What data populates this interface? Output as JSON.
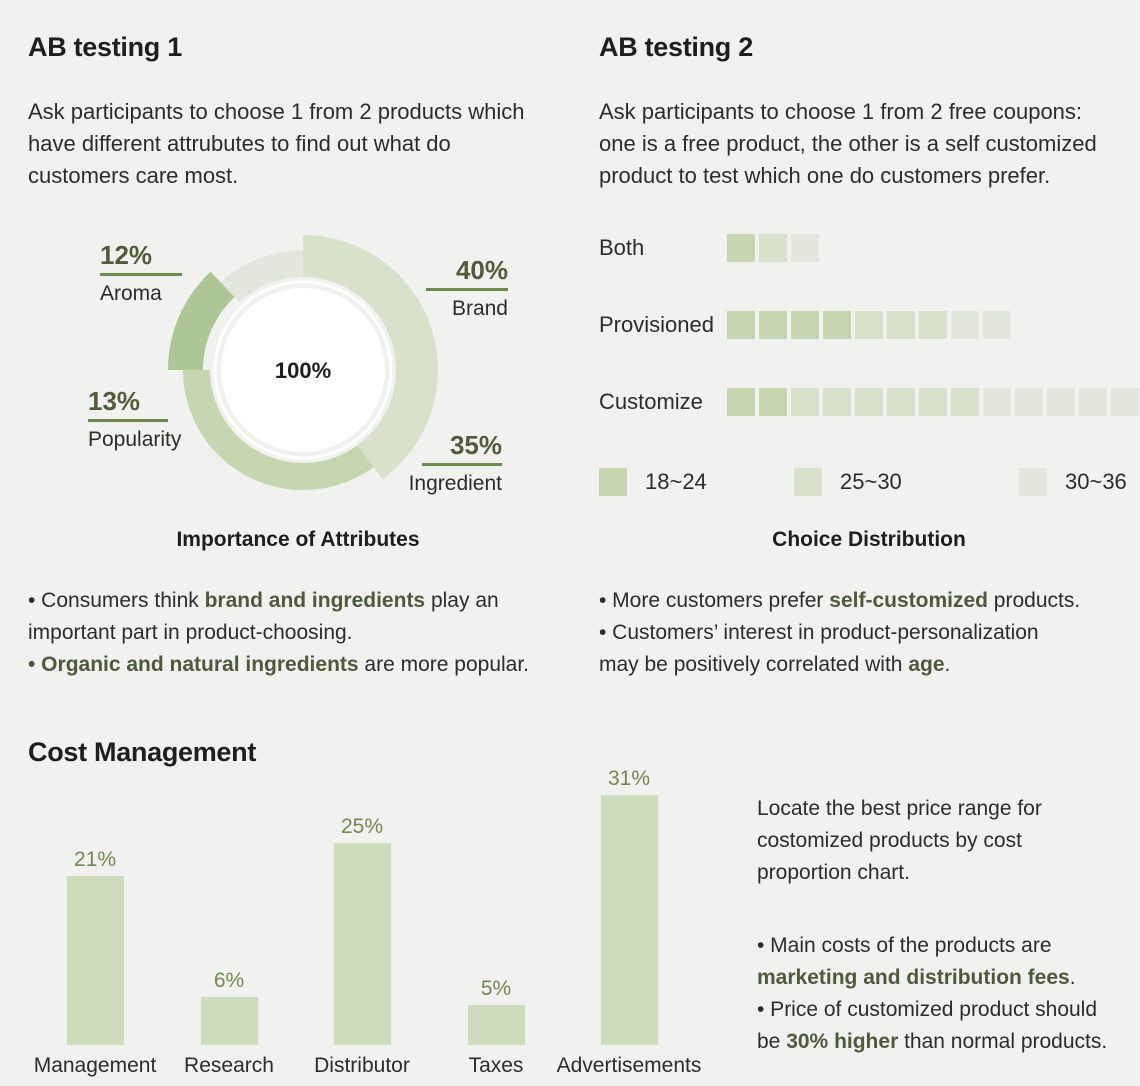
{
  "ab1": {
    "title": "AB testing 1",
    "desc_lines": [
      "Ask participants to choose 1 from 2 products which",
      "have different attrubutes to find out what do",
      "customers care most."
    ],
    "center_label": "100%",
    "caption": "Importance of Attributes",
    "bullet1_pre": "• Consumers think ",
    "bullet1_bold": "brand and ingredients",
    "bullet1_post": " play an",
    "bullet1_line2": "important part in product-choosing.",
    "bullet2_bold": "• Organic and natural ingredients",
    "bullet2_post": " are more popular."
  },
  "ab2": {
    "title": "AB testing 2",
    "desc_lines": [
      "Ask participants to choose 1 from 2 free coupons:",
      "one is a free product, the other is a self customized",
      "product to test which one do customers prefer."
    ],
    "caption": "Choice Distribution",
    "bullet1_pre": "• More customers prefer ",
    "bullet1_bold": "self-customized",
    "bullet1_post": " products.",
    "bullet2_line1": "• Customers’  interest in product-personalization",
    "bullet2_pre": "may be positively correlated with ",
    "bullet2_bold": "age",
    "bullet2_post": "."
  },
  "cost": {
    "title": "Cost Management",
    "desc_lines": [
      "Locate the best price range for",
      "costomized products by cost",
      "proportion chart."
    ],
    "bullet1_line1": "• Main costs of the products are",
    "bullet1_bold": "marketing and distribution fees",
    "bullet1_post": ".",
    "bullet2_line1": "• Price of customized product should",
    "bullet2_pre": "be ",
    "bullet2_bold": "30% higher",
    "bullet2_post": " than normal products."
  },
  "colors": {
    "dark_green": "#aec595",
    "mid_green": "#c6d6b1",
    "light_green": "#d8e2cb",
    "lightest": "#e2e6dc",
    "label_green": "#4f5d3a"
  },
  "chart_data": [
    {
      "type": "pie",
      "title": "Importance of Attributes",
      "categories": [
        "Brand",
        "Ingredient",
        "Popularity",
        "Aroma"
      ],
      "values": [
        40,
        35,
        13,
        12
      ],
      "labels": [
        "40%",
        "35%",
        "13%",
        "12%"
      ]
    },
    {
      "type": "bar",
      "title": "Choice Distribution",
      "categories": [
        "Both",
        "Provisioned",
        "Customize"
      ],
      "series": [
        {
          "name": "18~24",
          "values": [
            1,
            4,
            2
          ]
        },
        {
          "name": "25~30",
          "values": [
            1,
            3,
            6
          ]
        },
        {
          "name": "30~36",
          "values": [
            1,
            2,
            5
          ]
        }
      ],
      "legend": [
        "18~24",
        "25~30",
        "30~36"
      ]
    },
    {
      "type": "bar",
      "title": "Cost Management",
      "categories": [
        "Management",
        "Research",
        "Distributor",
        "Taxes",
        "Advertisements"
      ],
      "values": [
        21,
        6,
        25,
        5,
        31
      ],
      "labels": [
        "21%",
        "6%",
        "25%",
        "5%",
        "31%"
      ]
    }
  ]
}
